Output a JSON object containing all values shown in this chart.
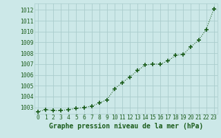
{
  "x": [
    0,
    1,
    2,
    3,
    4,
    5,
    6,
    7,
    8,
    9,
    10,
    11,
    12,
    13,
    14,
    15,
    16,
    17,
    18,
    19,
    20,
    21,
    22,
    23
  ],
  "y": [
    1002.6,
    1002.8,
    1002.7,
    1002.7,
    1002.8,
    1002.9,
    1003.0,
    1003.1,
    1003.4,
    1003.7,
    1004.7,
    1005.3,
    1005.8,
    1006.4,
    1006.9,
    1007.0,
    1007.0,
    1007.3,
    1007.8,
    1007.9,
    1008.6,
    1009.2,
    1010.2,
    1012.1
  ],
  "line_color": "#1a5c1a",
  "marker_color": "#1a5c1a",
  "bg_color": "#cce8e8",
  "grid_color": "#aacccc",
  "xlabel": "Graphe pression niveau de la mer (hPa)",
  "xlabel_color": "#1a5c1a",
  "tick_color": "#1a5c1a",
  "ylim": [
    1002.4,
    1012.6
  ],
  "xlim": [
    -0.5,
    23.5
  ],
  "yticks": [
    1003,
    1004,
    1005,
    1006,
    1007,
    1008,
    1009,
    1010,
    1011,
    1012
  ],
  "xticks": [
    0,
    1,
    2,
    3,
    4,
    5,
    6,
    7,
    8,
    9,
    10,
    11,
    12,
    13,
    14,
    15,
    16,
    17,
    18,
    19,
    20,
    21,
    22,
    23
  ],
  "tick_fontsize": 5.8,
  "xlabel_fontsize": 7.0
}
